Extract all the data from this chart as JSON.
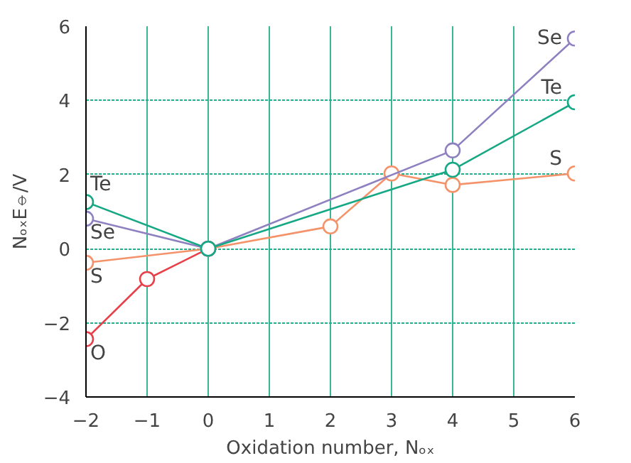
{
  "chart_data": {
    "type": "line",
    "xlabel": "Oxidation number, Nₒₓ",
    "ylabel": "NₒₓE⦵/V",
    "xlim": [
      -2,
      6
    ],
    "ylim": [
      -4,
      6
    ],
    "xticks": [
      -2,
      -1,
      0,
      1,
      2,
      3,
      4,
      5,
      6
    ],
    "yticks": [
      -4,
      -2,
      0,
      2,
      4,
      6
    ],
    "grid": true,
    "marker": "circle",
    "line_style": "solid",
    "series": [
      {
        "name": "O",
        "color": "#e8404a",
        "x": [
          -2,
          -1,
          0
        ],
        "values": [
          -2.44,
          -0.82,
          0
        ]
      },
      {
        "name": "S",
        "color": "#f4926a",
        "x": [
          -2,
          0,
          2,
          3,
          4,
          6
        ],
        "values": [
          -0.38,
          0,
          0.6,
          2.03,
          1.72,
          2.03
        ]
      },
      {
        "name": "Se",
        "color": "#8f80c0",
        "x": [
          -2,
          0,
          4,
          6
        ],
        "values": [
          0.81,
          0,
          2.65,
          5.67
        ]
      },
      {
        "name": "Te",
        "color": "#16a884",
        "x": [
          -2,
          0,
          4,
          6
        ],
        "values": [
          1.26,
          0,
          2.13,
          3.95
        ]
      }
    ]
  }
}
